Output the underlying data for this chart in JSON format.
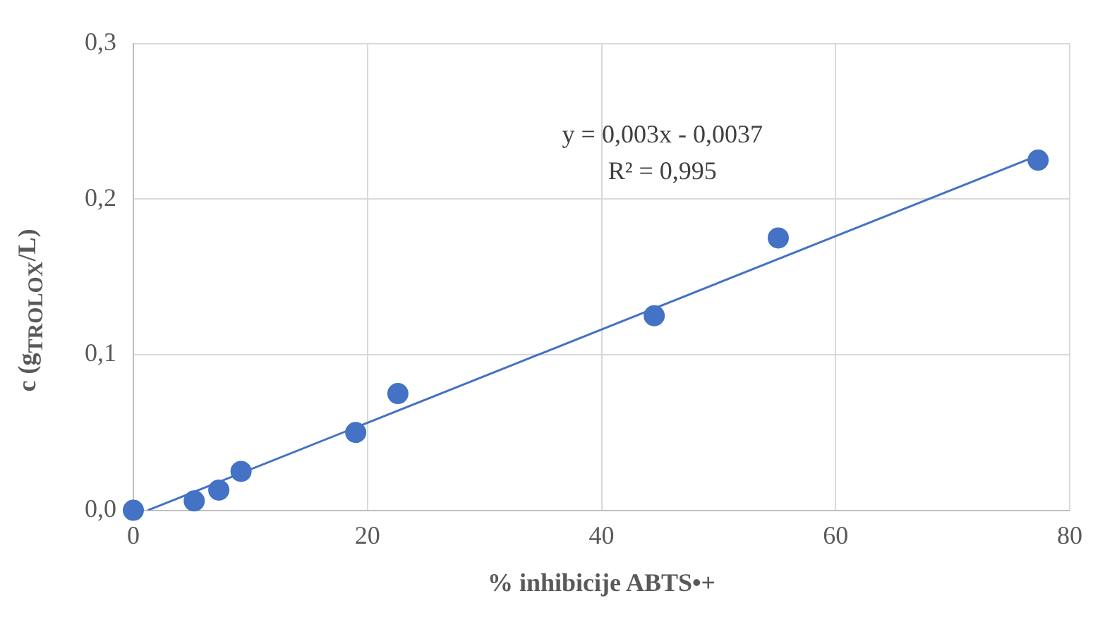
{
  "chart_data": {
    "type": "scatter",
    "xlabel": "% inhibicije ABTS•+",
    "ylabel": "c (g$_{TROLOX}$/L)",
    "annotations": [
      "y = 0,003x - 0,0037",
      "R² = 0,995"
    ],
    "series": [
      {
        "type": "scatter",
        "color": "#4472c4",
        "marker": "circle",
        "x": [
          0,
          5.2,
          7.3,
          9.2,
          19,
          22.6,
          44.5,
          55.1,
          77.3
        ],
        "values": [
          0,
          0.006,
          0.013,
          0.025,
          0.05,
          0.075,
          0.125,
          0.175,
          0.225
        ]
      },
      {
        "type": "line",
        "color": "#4472c4",
        "x": [
          1.23,
          77.3
        ],
        "values": [
          0,
          0.228
        ]
      }
    ],
    "xlim": [
      0,
      80
    ],
    "xticks": [
      0,
      20,
      40,
      60,
      80
    ],
    "ylim": [
      0,
      0.3
    ],
    "yticks": [
      {
        "value": 0,
        "label": "0,0"
      },
      {
        "value": 0.1,
        "label": "0,1"
      },
      {
        "value": 0.2,
        "label": "0,2"
      },
      {
        "value": 0.3,
        "label": "0,3"
      }
    ],
    "grid": true,
    "legend": false
  }
}
